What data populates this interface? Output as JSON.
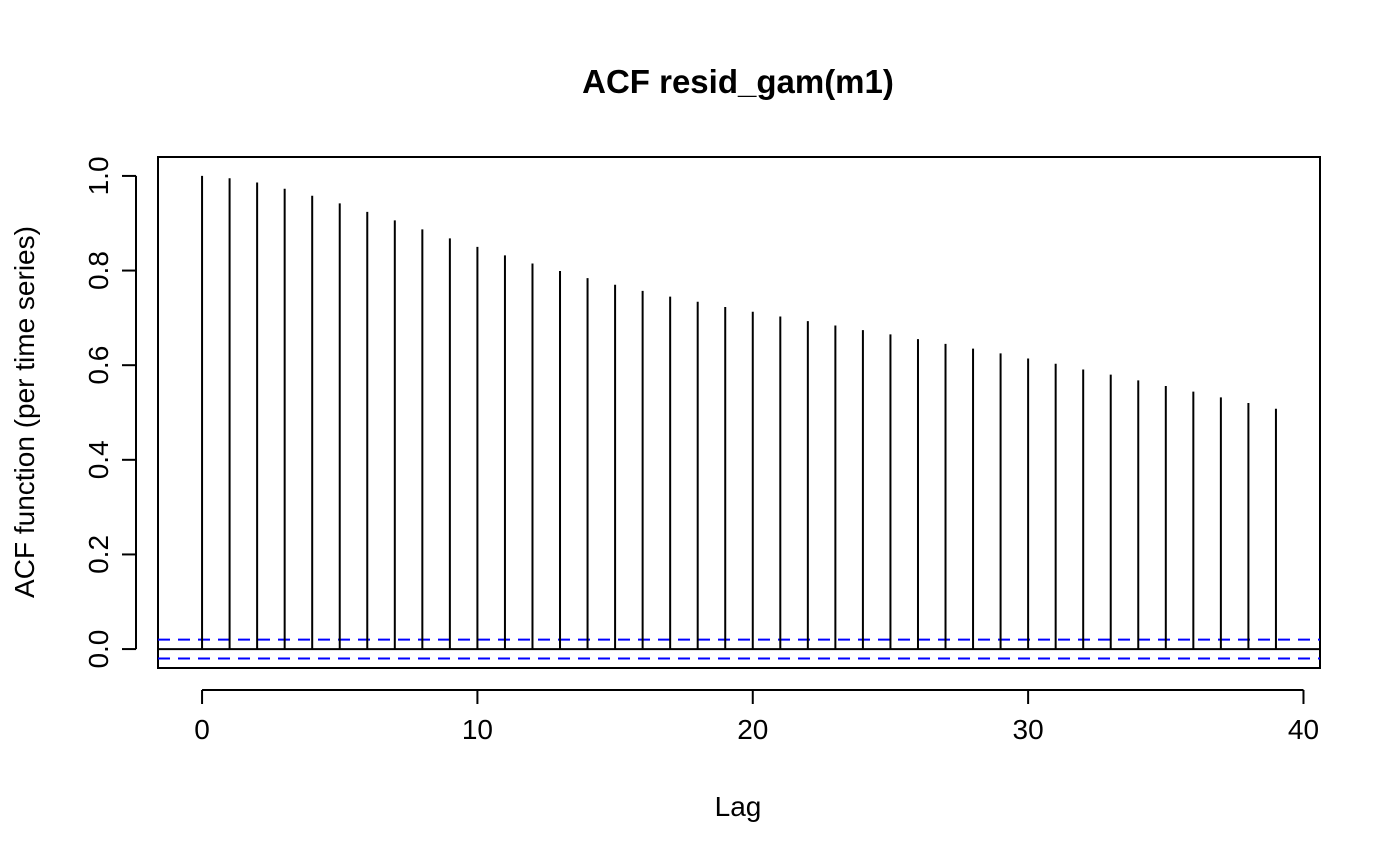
{
  "chart_data": {
    "type": "bar",
    "title": "ACF resid_gam(m1)",
    "xlabel": "Lag",
    "ylabel": "ACF function (per time series)",
    "x": [
      0,
      1,
      2,
      3,
      4,
      5,
      6,
      7,
      8,
      9,
      10,
      11,
      12,
      13,
      14,
      15,
      16,
      17,
      18,
      19,
      20,
      21,
      22,
      23,
      24,
      25,
      26,
      27,
      28,
      29,
      30,
      31,
      32,
      33,
      34,
      35,
      36,
      37,
      38,
      39
    ],
    "values": [
      1.0,
      0.995,
      0.986,
      0.973,
      0.958,
      0.942,
      0.924,
      0.906,
      0.887,
      0.868,
      0.85,
      0.832,
      0.815,
      0.799,
      0.784,
      0.77,
      0.757,
      0.745,
      0.734,
      0.723,
      0.713,
      0.703,
      0.693,
      0.684,
      0.674,
      0.665,
      0.655,
      0.645,
      0.635,
      0.625,
      0.614,
      0.603,
      0.591,
      0.58,
      0.568,
      0.556,
      0.544,
      0.532,
      0.52,
      0.508
    ],
    "xlim": [
      -1.6,
      40.6
    ],
    "ylim": [
      -0.04,
      1.04
    ],
    "xticks": [
      "0",
      "10",
      "20",
      "30",
      "40"
    ],
    "yticks": [
      "0.0",
      "0.2",
      "0.4",
      "0.6",
      "0.8",
      "1.0"
    ],
    "confidence_band": [
      -0.02,
      0.02
    ],
    "bar_color": "#000000",
    "band_color": "#0000ff",
    "grid": false,
    "legend": "none"
  }
}
